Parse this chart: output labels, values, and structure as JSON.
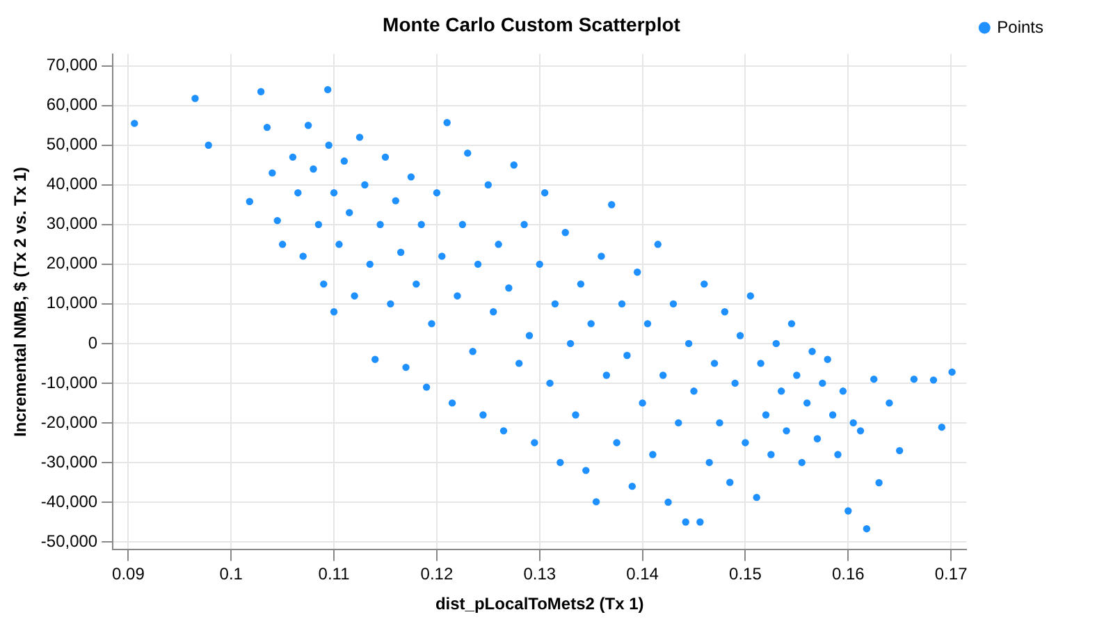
{
  "chart_data": {
    "type": "scatter",
    "title": "Monte Carlo Custom Scatterplot",
    "xlabel": "dist_pLocalToMets2 (Tx 1)",
    "ylabel": "Incremental NMB, $ (Tx 2 vs. Tx 1)",
    "xlim": [
      0.0885,
      0.1715
    ],
    "ylim": [
      -52000,
      73000
    ],
    "xticks": [
      0.09,
      0.1,
      0.11,
      0.12,
      0.13,
      0.14,
      0.15,
      0.16,
      0.17
    ],
    "yticks": [
      {
        "value": -50000,
        "label": "-50,000"
      },
      {
        "value": -40000,
        "label": "-40,000"
      },
      {
        "value": -30000,
        "label": "-30,000"
      },
      {
        "value": -20000,
        "label": "-20,000"
      },
      {
        "value": -10000,
        "label": "-10,000"
      },
      0,
      {
        "value": 10000,
        "label": "10,000"
      },
      {
        "value": 20000,
        "label": "20,000"
      },
      {
        "value": 30000,
        "label": "30,000"
      },
      {
        "value": 40000,
        "label": "40,000"
      },
      {
        "value": 50000,
        "label": "50,000"
      },
      {
        "value": 60000,
        "label": "60,000"
      },
      {
        "value": 70000,
        "label": "70,000"
      }
    ],
    "grid": true,
    "legend": "top right",
    "marker": "circle",
    "x": [
      0.0906,
      0.0965,
      0.0978,
      0.1018,
      0.1029,
      0.1094,
      0.1035,
      0.104,
      0.1045,
      0.105,
      0.106,
      0.1065,
      0.107,
      0.1075,
      0.108,
      0.1085,
      0.109,
      0.1095,
      0.11,
      0.11,
      0.1105,
      0.111,
      0.1115,
      0.112,
      0.1125,
      0.113,
      0.1135,
      0.114,
      0.1145,
      0.115,
      0.1155,
      0.116,
      0.1165,
      0.117,
      0.1175,
      0.118,
      0.1185,
      0.119,
      0.1195,
      0.12,
      0.1205,
      0.121,
      0.1215,
      0.122,
      0.1225,
      0.123,
      0.1235,
      0.124,
      0.1245,
      0.125,
      0.1255,
      0.126,
      0.1265,
      0.127,
      0.1275,
      0.128,
      0.1285,
      0.129,
      0.1295,
      0.13,
      0.1305,
      0.131,
      0.1315,
      0.132,
      0.1325,
      0.133,
      0.1335,
      0.134,
      0.1345,
      0.135,
      0.1355,
      0.136,
      0.1365,
      0.137,
      0.1375,
      0.138,
      0.1385,
      0.139,
      0.1395,
      0.14,
      0.1405,
      0.141,
      0.1415,
      0.142,
      0.1425,
      0.143,
      0.1435,
      0.1442,
      0.1445,
      0.145,
      0.1456,
      0.146,
      0.1465,
      0.147,
      0.1475,
      0.148,
      0.1485,
      0.149,
      0.1495,
      0.15,
      0.1505,
      0.1511,
      0.1515,
      0.152,
      0.1525,
      0.153,
      0.1535,
      0.154,
      0.1545,
      0.155,
      0.1555,
      0.156,
      0.1565,
      0.157,
      0.1575,
      0.158,
      0.1585,
      0.159,
      0.1595,
      0.16,
      0.1605,
      0.1612,
      0.1618,
      0.1625,
      0.163,
      0.164,
      0.165,
      0.1664,
      0.1683,
      0.1691,
      0.1701
    ],
    "series": [
      {
        "name": "Points",
        "color": "#1e90ff",
        "values": [
          55500,
          61800,
          50000,
          35800,
          63500,
          64000,
          54500,
          43000,
          31000,
          25000,
          47000,
          38000,
          22000,
          55000,
          44000,
          30000,
          15000,
          50000,
          38000,
          8000,
          25000,
          46000,
          33000,
          12000,
          52000,
          40000,
          20000,
          -4000,
          30000,
          47000,
          10000,
          36000,
          23000,
          -6000,
          42000,
          15000,
          30000,
          -11000,
          5000,
          38000,
          22000,
          55700,
          -15000,
          12000,
          30000,
          48000,
          -2000,
          20000,
          -18000,
          40000,
          8000,
          25000,
          -22000,
          14000,
          45000,
          -5000,
          30000,
          2000,
          -25000,
          20000,
          38000,
          -10000,
          10000,
          -30000,
          28000,
          0,
          -18000,
          15000,
          -32000,
          5000,
          -39900,
          22000,
          -8000,
          35000,
          -25000,
          10000,
          -3000,
          -36000,
          18000,
          -15000,
          5000,
          -28000,
          25000,
          -8000,
          -40000,
          10000,
          -20000,
          -45000,
          0,
          -12000,
          -45000,
          15000,
          -30000,
          -5000,
          -20000,
          8000,
          -35000,
          -10000,
          2000,
          -25000,
          12000,
          -38800,
          -5000,
          -18000,
          -28000,
          0,
          -12000,
          -22000,
          5000,
          -8000,
          -30000,
          -15000,
          -2000,
          -24000,
          -10000,
          -4000,
          -18000,
          -28000,
          -12000,
          -42200,
          -20000,
          -22000,
          -46700,
          -9000,
          -35100,
          -15000,
          -27000,
          -9000,
          -9200,
          -21100,
          -7200
        ]
      }
    ]
  }
}
